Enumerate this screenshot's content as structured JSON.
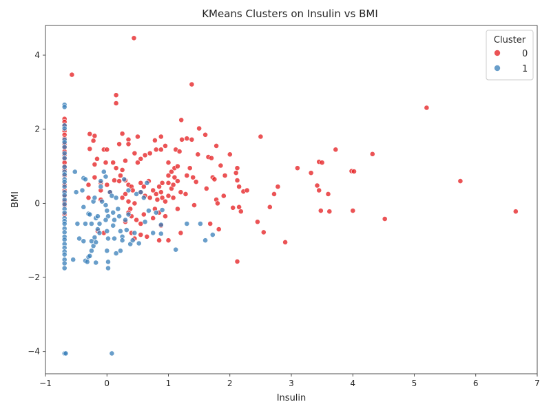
{
  "chart_data": {
    "type": "scatter",
    "title": "KMeans Clusters on Insulin vs BMI",
    "xlabel": "Insulin",
    "ylabel": "BMI",
    "xlim": [
      -1.0,
      7.0
    ],
    "ylim": [
      -4.6,
      4.8
    ],
    "xticks": [
      -1,
      0,
      1,
      2,
      3,
      4,
      5,
      6,
      7
    ],
    "yticks": [
      -4,
      -2,
      0,
      2,
      4
    ],
    "grid": false,
    "legend": {
      "title": "Cluster",
      "placement": "top-right"
    },
    "colors": {
      "0": "#e41a1c",
      "1": "#377eb8"
    },
    "series": [
      {
        "name": "0",
        "points": [
          [
            -0.69,
            2.28
          ],
          [
            -0.69,
            2.2
          ],
          [
            -0.69,
            2.1
          ],
          [
            -0.69,
            1.95
          ],
          [
            -0.69,
            1.85
          ],
          [
            -0.69,
            1.75
          ],
          [
            -0.69,
            1.6
          ],
          [
            -0.69,
            1.5
          ],
          [
            -0.69,
            1.4
          ],
          [
            -0.69,
            1.3
          ],
          [
            -0.69,
            1.2
          ],
          [
            -0.69,
            1.1
          ],
          [
            -0.69,
            1.0
          ],
          [
            -0.69,
            0.9
          ],
          [
            -0.69,
            0.75
          ],
          [
            -0.69,
            0.5
          ],
          [
            -0.69,
            0.35
          ],
          [
            -0.69,
            0.2
          ],
          [
            -0.69,
            0.05
          ],
          [
            -0.69,
            -0.05
          ],
          [
            -0.69,
            -0.3
          ],
          [
            -0.57,
            3.47
          ],
          [
            -0.28,
            1.87
          ],
          [
            -0.28,
            1.47
          ],
          [
            -0.22,
            1.69
          ],
          [
            -0.2,
            1.82
          ],
          [
            -0.16,
            1.2
          ],
          [
            -0.05,
            1.45
          ],
          [
            0.0,
            1.45
          ],
          [
            -0.2,
            1.05
          ],
          [
            -0.02,
            1.1
          ],
          [
            0.1,
            1.1
          ],
          [
            -0.3,
            0.5
          ],
          [
            -0.2,
            0.7
          ],
          [
            -0.1,
            0.55
          ],
          [
            0.0,
            0.5
          ],
          [
            -0.1,
            0.35
          ],
          [
            0.05,
            0.3
          ],
          [
            -0.3,
            0.15
          ],
          [
            -0.1,
            0.1
          ],
          [
            -0.15,
            -0.75
          ],
          [
            -0.05,
            -0.8
          ],
          [
            0.4,
            -0.8
          ],
          [
            0.55,
            -0.85
          ],
          [
            0.45,
            -0.95
          ],
          [
            0.65,
            -0.9
          ],
          [
            0.15,
            2.92
          ],
          [
            0.15,
            2.7
          ],
          [
            0.44,
            4.46
          ],
          [
            1.38,
            3.21
          ],
          [
            1.21,
            2.25
          ],
          [
            0.2,
            1.6
          ],
          [
            0.35,
            1.72
          ],
          [
            0.35,
            1.6
          ],
          [
            0.25,
            1.88
          ],
          [
            0.45,
            1.35
          ],
          [
            0.5,
            1.8
          ],
          [
            0.55,
            1.2
          ],
          [
            0.5,
            1.1
          ],
          [
            0.62,
            1.3
          ],
          [
            0.7,
            1.35
          ],
          [
            0.8,
            1.45
          ],
          [
            0.78,
            1.7
          ],
          [
            0.88,
            1.8
          ],
          [
            0.88,
            1.45
          ],
          [
            0.95,
            1.55
          ],
          [
            0.3,
            1.15
          ],
          [
            0.15,
            0.95
          ],
          [
            0.25,
            0.9
          ],
          [
            0.22,
            0.75
          ],
          [
            0.12,
            0.62
          ],
          [
            0.2,
            0.6
          ],
          [
            0.3,
            0.62
          ],
          [
            0.35,
            0.5
          ],
          [
            0.4,
            0.45
          ],
          [
            0.42,
            0.35
          ],
          [
            0.3,
            0.25
          ],
          [
            0.25,
            0.15
          ],
          [
            0.35,
            0.05
          ],
          [
            0.45,
            0.0
          ],
          [
            0.38,
            -0.15
          ],
          [
            0.35,
            -0.25
          ],
          [
            0.4,
            -0.35
          ],
          [
            0.48,
            -0.45
          ],
          [
            0.3,
            -0.5
          ],
          [
            0.55,
            0.55
          ],
          [
            0.6,
            0.45
          ],
          [
            0.68,
            0.6
          ],
          [
            0.55,
            0.3
          ],
          [
            0.62,
            0.2
          ],
          [
            0.7,
            0.15
          ],
          [
            0.75,
            0.35
          ],
          [
            0.8,
            0.25
          ],
          [
            0.85,
            0.45
          ],
          [
            0.9,
            0.55
          ],
          [
            0.88,
            0.3
          ],
          [
            0.82,
            0.1
          ],
          [
            0.9,
            0.15
          ],
          [
            0.95,
            0.05
          ],
          [
            0.78,
            -0.15
          ],
          [
            0.85,
            -0.25
          ],
          [
            0.75,
            -0.4
          ],
          [
            0.6,
            -0.3
          ],
          [
            0.55,
            -0.55
          ],
          [
            0.95,
            -0.35
          ],
          [
            0.88,
            -0.6
          ],
          [
            0.85,
            -1.0
          ],
          [
            1.0,
            -1.0
          ],
          [
            1.0,
            0.2
          ],
          [
            1.05,
            0.4
          ],
          [
            1.0,
            0.55
          ],
          [
            1.0,
            0.75
          ],
          [
            1.05,
            0.85
          ],
          [
            1.1,
            0.95
          ],
          [
            1.15,
            1.0
          ],
          [
            1.0,
            1.1
          ],
          [
            1.12,
            1.45
          ],
          [
            1.18,
            1.4
          ],
          [
            1.22,
            1.72
          ],
          [
            1.3,
            1.75
          ],
          [
            1.38,
            1.72
          ],
          [
            1.5,
            2.02
          ],
          [
            1.6,
            1.85
          ],
          [
            1.1,
            0.7
          ],
          [
            1.15,
            0.6
          ],
          [
            1.08,
            0.5
          ],
          [
            1.2,
            0.3
          ],
          [
            1.08,
            0.15
          ],
          [
            1.15,
            -0.15
          ],
          [
            1.2,
            -0.8
          ],
          [
            1.3,
            0.75
          ],
          [
            1.35,
            0.95
          ],
          [
            1.28,
            0.25
          ],
          [
            1.4,
            0.7
          ],
          [
            1.48,
            1.32
          ],
          [
            1.45,
            0.58
          ],
          [
            1.42,
            -0.05
          ],
          [
            1.62,
            0.4
          ],
          [
            1.65,
            1.25
          ],
          [
            1.7,
            1.22
          ],
          [
            1.72,
            0.7
          ],
          [
            1.75,
            0.65
          ],
          [
            1.78,
            1.55
          ],
          [
            1.78,
            0.1
          ],
          [
            1.8,
            0.0
          ],
          [
            1.85,
            1.02
          ],
          [
            1.82,
            -0.7
          ],
          [
            1.9,
            0.2
          ],
          [
            1.92,
            0.75
          ],
          [
            1.68,
            -0.55
          ],
          [
            2.0,
            1.32
          ],
          [
            2.05,
            -0.12
          ],
          [
            2.1,
            0.82
          ],
          [
            2.12,
            0.95
          ],
          [
            2.12,
            0.62
          ],
          [
            2.15,
            0.45
          ],
          [
            2.15,
            -0.1
          ],
          [
            2.18,
            -0.22
          ],
          [
            2.12,
            -1.57
          ],
          [
            2.22,
            0.32
          ],
          [
            2.28,
            0.35
          ],
          [
            2.45,
            -0.5
          ],
          [
            2.5,
            1.8
          ],
          [
            2.55,
            -0.78
          ],
          [
            2.65,
            -0.1
          ],
          [
            2.72,
            0.25
          ],
          [
            2.78,
            0.45
          ],
          [
            2.9,
            -1.05
          ],
          [
            3.1,
            0.95
          ],
          [
            3.32,
            0.82
          ],
          [
            3.42,
            0.48
          ],
          [
            3.45,
            0.35
          ],
          [
            3.45,
            1.12
          ],
          [
            3.5,
            1.1
          ],
          [
            3.48,
            -0.2
          ],
          [
            3.6,
            0.25
          ],
          [
            3.62,
            -0.22
          ],
          [
            3.72,
            1.45
          ],
          [
            3.98,
            0.87
          ],
          [
            4.02,
            0.86
          ],
          [
            4.0,
            -0.2
          ],
          [
            4.32,
            1.33
          ],
          [
            4.52,
            -0.42
          ],
          [
            5.2,
            2.58
          ],
          [
            5.75,
            0.6
          ],
          [
            6.65,
            -0.22
          ]
        ]
      },
      {
        "name": "1",
        "points": [
          [
            -0.69,
            2.66
          ],
          [
            -0.69,
            2.6
          ],
          [
            -0.69,
            2.1
          ],
          [
            -0.69,
            2.02
          ],
          [
            -0.69,
            1.72
          ],
          [
            -0.69,
            1.65
          ],
          [
            -0.69,
            1.52
          ],
          [
            -0.69,
            1.35
          ],
          [
            -0.69,
            1.22
          ],
          [
            -0.69,
            0.98
          ],
          [
            -0.69,
            0.85
          ],
          [
            -0.69,
            0.78
          ],
          [
            -0.69,
            0.65
          ],
          [
            -0.69,
            0.58
          ],
          [
            -0.69,
            0.45
          ],
          [
            -0.69,
            0.3
          ],
          [
            -0.69,
            0.22
          ],
          [
            -0.69,
            0.1
          ],
          [
            -0.69,
            -0.02
          ],
          [
            -0.69,
            -0.15
          ],
          [
            -0.69,
            -0.25
          ],
          [
            -0.69,
            -0.4
          ],
          [
            -0.69,
            -0.48
          ],
          [
            -0.69,
            -0.55
          ],
          [
            -0.69,
            -0.68
          ],
          [
            -0.69,
            -0.78
          ],
          [
            -0.69,
            -0.9
          ],
          [
            -0.69,
            -0.98
          ],
          [
            -0.69,
            -1.1
          ],
          [
            -0.69,
            -1.2
          ],
          [
            -0.69,
            -1.3
          ],
          [
            -0.69,
            -1.38
          ],
          [
            -0.69,
            -1.52
          ],
          [
            -0.69,
            -1.62
          ],
          [
            -0.69,
            -1.75
          ],
          [
            -0.69,
            -4.05
          ],
          [
            -0.67,
            -4.05
          ],
          [
            0.08,
            -4.05
          ],
          [
            -0.55,
            -1.52
          ],
          [
            -0.52,
            0.85
          ],
          [
            -0.5,
            0.3
          ],
          [
            -0.48,
            -0.55
          ],
          [
            -0.45,
            -0.95
          ],
          [
            -0.4,
            0.35
          ],
          [
            -0.38,
            0.68
          ],
          [
            -0.35,
            0.65
          ],
          [
            -0.38,
            -0.1
          ],
          [
            -0.35,
            -0.55
          ],
          [
            -0.38,
            -1.02
          ],
          [
            -0.35,
            -1.55
          ],
          [
            -0.32,
            -1.58
          ],
          [
            -0.3,
            -1.45
          ],
          [
            -0.28,
            -1.42
          ],
          [
            -0.3,
            -0.28
          ],
          [
            -0.28,
            -0.3
          ],
          [
            -0.25,
            -0.55
          ],
          [
            -0.25,
            -1.02
          ],
          [
            -0.22,
            -1.15
          ],
          [
            -0.25,
            -1.28
          ],
          [
            -0.22,
            0.05
          ],
          [
            -0.2,
            0.15
          ],
          [
            -0.18,
            -0.4
          ],
          [
            -0.2,
            -0.92
          ],
          [
            -0.18,
            -1.05
          ],
          [
            -0.15,
            -0.35
          ],
          [
            -0.12,
            -0.55
          ],
          [
            -0.15,
            -0.7
          ],
          [
            -0.12,
            -0.8
          ],
          [
            -0.1,
            0.6
          ],
          [
            -0.1,
            0.45
          ],
          [
            -0.08,
            0.05
          ],
          [
            -0.05,
            0.85
          ],
          [
            -0.02,
            0.72
          ],
          [
            -0.02,
            -0.05
          ],
          [
            0.0,
            -0.2
          ],
          [
            0.02,
            -0.35
          ],
          [
            -0.02,
            -0.45
          ],
          [
            0.0,
            -0.75
          ],
          [
            0.02,
            -0.95
          ],
          [
            0.0,
            -1.28
          ],
          [
            0.02,
            -1.58
          ],
          [
            0.02,
            -1.75
          ],
          [
            -0.18,
            -1.6
          ],
          [
            0.05,
            0.3
          ],
          [
            0.08,
            0.2
          ],
          [
            0.1,
            -0.25
          ],
          [
            0.12,
            -0.45
          ],
          [
            0.1,
            -0.6
          ],
          [
            0.12,
            -0.95
          ],
          [
            0.15,
            -1.35
          ],
          [
            0.15,
            0.15
          ],
          [
            0.18,
            -0.15
          ],
          [
            0.2,
            -0.35
          ],
          [
            0.22,
            -0.75
          ],
          [
            0.25,
            -0.9
          ],
          [
            0.25,
            -1.0
          ],
          [
            0.22,
            -1.28
          ],
          [
            0.28,
            0.65
          ],
          [
            0.3,
            -0.45
          ],
          [
            0.32,
            -0.72
          ],
          [
            0.35,
            0.35
          ],
          [
            0.35,
            -0.3
          ],
          [
            0.38,
            -1.1
          ],
          [
            0.42,
            -1.0
          ],
          [
            0.45,
            -0.8
          ],
          [
            0.48,
            0.25
          ],
          [
            0.52,
            -1.08
          ],
          [
            0.55,
            0.3
          ],
          [
            0.6,
            0.15
          ],
          [
            0.62,
            -0.5
          ],
          [
            0.65,
            0.55
          ],
          [
            0.68,
            -0.2
          ],
          [
            0.75,
            -0.8
          ],
          [
            0.8,
            -0.25
          ],
          [
            0.88,
            -0.82
          ],
          [
            0.88,
            -0.58
          ],
          [
            0.9,
            -0.18
          ],
          [
            1.12,
            -1.25
          ],
          [
            1.3,
            -0.55
          ],
          [
            1.52,
            -0.55
          ],
          [
            1.6,
            -1.0
          ],
          [
            1.72,
            -0.85
          ]
        ]
      }
    ]
  }
}
